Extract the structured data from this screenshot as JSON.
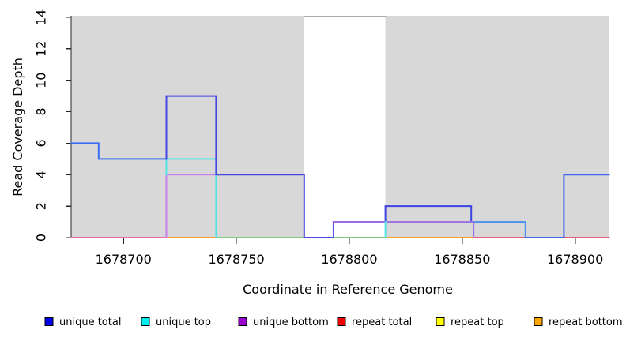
{
  "chart_data": {
    "type": "line",
    "step": true,
    "title": "",
    "xlabel": "Coordinate in Reference Genome",
    "ylabel": "Read Coverage Depth",
    "x_range": [
      1678677,
      1678915
    ],
    "y_range": [
      0,
      14.1
    ],
    "grid": false,
    "x_ticks": [
      {
        "value": 1678700,
        "label": "1678700"
      },
      {
        "value": 1678750,
        "label": "1678750"
      },
      {
        "value": 1678800,
        "label": "1678800"
      },
      {
        "value": 1678850,
        "label": "1678850"
      },
      {
        "value": 1678900,
        "label": "1678900"
      }
    ],
    "y_ticks": [
      {
        "value": 0,
        "label": "0"
      },
      {
        "value": 2,
        "label": "2"
      },
      {
        "value": 4,
        "label": "4"
      },
      {
        "value": 6,
        "label": "6"
      },
      {
        "value": 8,
        "label": "8"
      },
      {
        "value": 10,
        "label": "10"
      },
      {
        "value": 12,
        "label": "12"
      },
      {
        "value": 14,
        "label": "14"
      }
    ],
    "background_regions": [
      {
        "name": "shaded-region-left",
        "from": 1678677,
        "to": 1678780,
        "color": "#d8d8d8"
      },
      {
        "name": "shaded-region-right",
        "from": 1678816,
        "to": 1678915,
        "color": "#d8d8d8"
      }
    ],
    "series": [
      {
        "name": "baseline-left",
        "color": "#e868aa",
        "width": 2,
        "points": [
          [
            1678677,
            0
          ],
          [
            1678719,
            0
          ]
        ]
      },
      {
        "name": "baseline-repeat-1",
        "color": "#ff9d28",
        "width": 2,
        "points": [
          [
            1678719,
            0
          ],
          [
            1678741,
            0
          ]
        ]
      },
      {
        "name": "baseline-mid",
        "color": "#82ca82",
        "width": 2,
        "points": [
          [
            1678741,
            0
          ],
          [
            1678816,
            0
          ]
        ]
      },
      {
        "name": "baseline-repeat-2",
        "color": "#ff9d28",
        "width": 2,
        "points": [
          [
            1678816,
            0
          ],
          [
            1678855,
            0
          ]
        ]
      },
      {
        "name": "baseline-right",
        "color": "#e55f7d",
        "width": 2,
        "points": [
          [
            1678855,
            0
          ],
          [
            1678915,
            0
          ]
        ]
      },
      {
        "name": "clipped-top",
        "color": "#8f8f8f",
        "width": 1.5,
        "points": [
          [
            1678780,
            14.05
          ],
          [
            1678816,
            14.05
          ]
        ]
      },
      {
        "name": "unique-bottom-left",
        "color": "#c583ea",
        "width": 2,
        "points": [
          [
            1678719,
            0
          ],
          [
            1678719,
            4
          ],
          [
            1678741,
            4
          ]
        ]
      },
      {
        "name": "unique-top",
        "color": "#55e3e8",
        "width": 2,
        "points": [
          [
            1678719,
            4
          ],
          [
            1678719,
            5
          ],
          [
            1678741,
            5
          ],
          [
            1678741,
            0
          ]
        ]
      },
      {
        "name": "unique-total-1",
        "color": "#3a6ef2",
        "width": 2,
        "points": [
          [
            1678677,
            6
          ],
          [
            1678689,
            6
          ],
          [
            1678689,
            5
          ],
          [
            1678719,
            5
          ]
        ]
      },
      {
        "name": "unique-total-2",
        "color": "#4546e2",
        "width": 2,
        "points": [
          [
            1678719,
            5
          ],
          [
            1678719,
            9
          ],
          [
            1678741,
            9
          ],
          [
            1678741,
            4
          ],
          [
            1678780,
            4
          ],
          [
            1678780,
            0
          ],
          [
            1678793,
            0
          ]
        ]
      },
      {
        "name": "unique-total-3",
        "color": "#5e55e8",
        "width": 2,
        "points": [
          [
            1678793,
            0
          ],
          [
            1678793,
            1
          ],
          [
            1678816,
            1
          ]
        ]
      },
      {
        "name": "unique-total-4",
        "color": "#3c43e2",
        "width": 2,
        "points": [
          [
            1678816,
            1
          ],
          [
            1678816,
            2
          ],
          [
            1678854,
            2
          ],
          [
            1678854,
            1
          ]
        ]
      },
      {
        "name": "unique-total-5",
        "color": "#4b90f0",
        "width": 2,
        "points": [
          [
            1678854,
            1
          ],
          [
            1678878,
            1
          ],
          [
            1678878,
            0
          ]
        ]
      },
      {
        "name": "unique-total-6",
        "color": "#4165ee",
        "width": 2,
        "points": [
          [
            1678878,
            0
          ],
          [
            1678895,
            0
          ],
          [
            1678895,
            4
          ],
          [
            1678915,
            4
          ]
        ]
      },
      {
        "name": "unique-bottom-right",
        "color": "#9d6fe2",
        "width": 2,
        "points": [
          [
            1678793,
            1
          ],
          [
            1678855,
            1
          ],
          [
            1678855,
            0
          ]
        ]
      },
      {
        "name": "unique-top-tick",
        "color": "#55e3e8",
        "width": 2,
        "points": [
          [
            1678816,
            0
          ],
          [
            1678816,
            1
          ]
        ]
      }
    ],
    "legend": [
      {
        "label": "unique total",
        "color": "#0000ee"
      },
      {
        "label": "unique top",
        "color": "#00eeee"
      },
      {
        "label": "unique bottom",
        "color": "#9900cc"
      },
      {
        "label": "repeat total",
        "color": "#ee0000"
      },
      {
        "label": "repeat top",
        "color": "#ffff00"
      },
      {
        "label": "repeat bottom",
        "color": "#ffa500"
      }
    ]
  }
}
